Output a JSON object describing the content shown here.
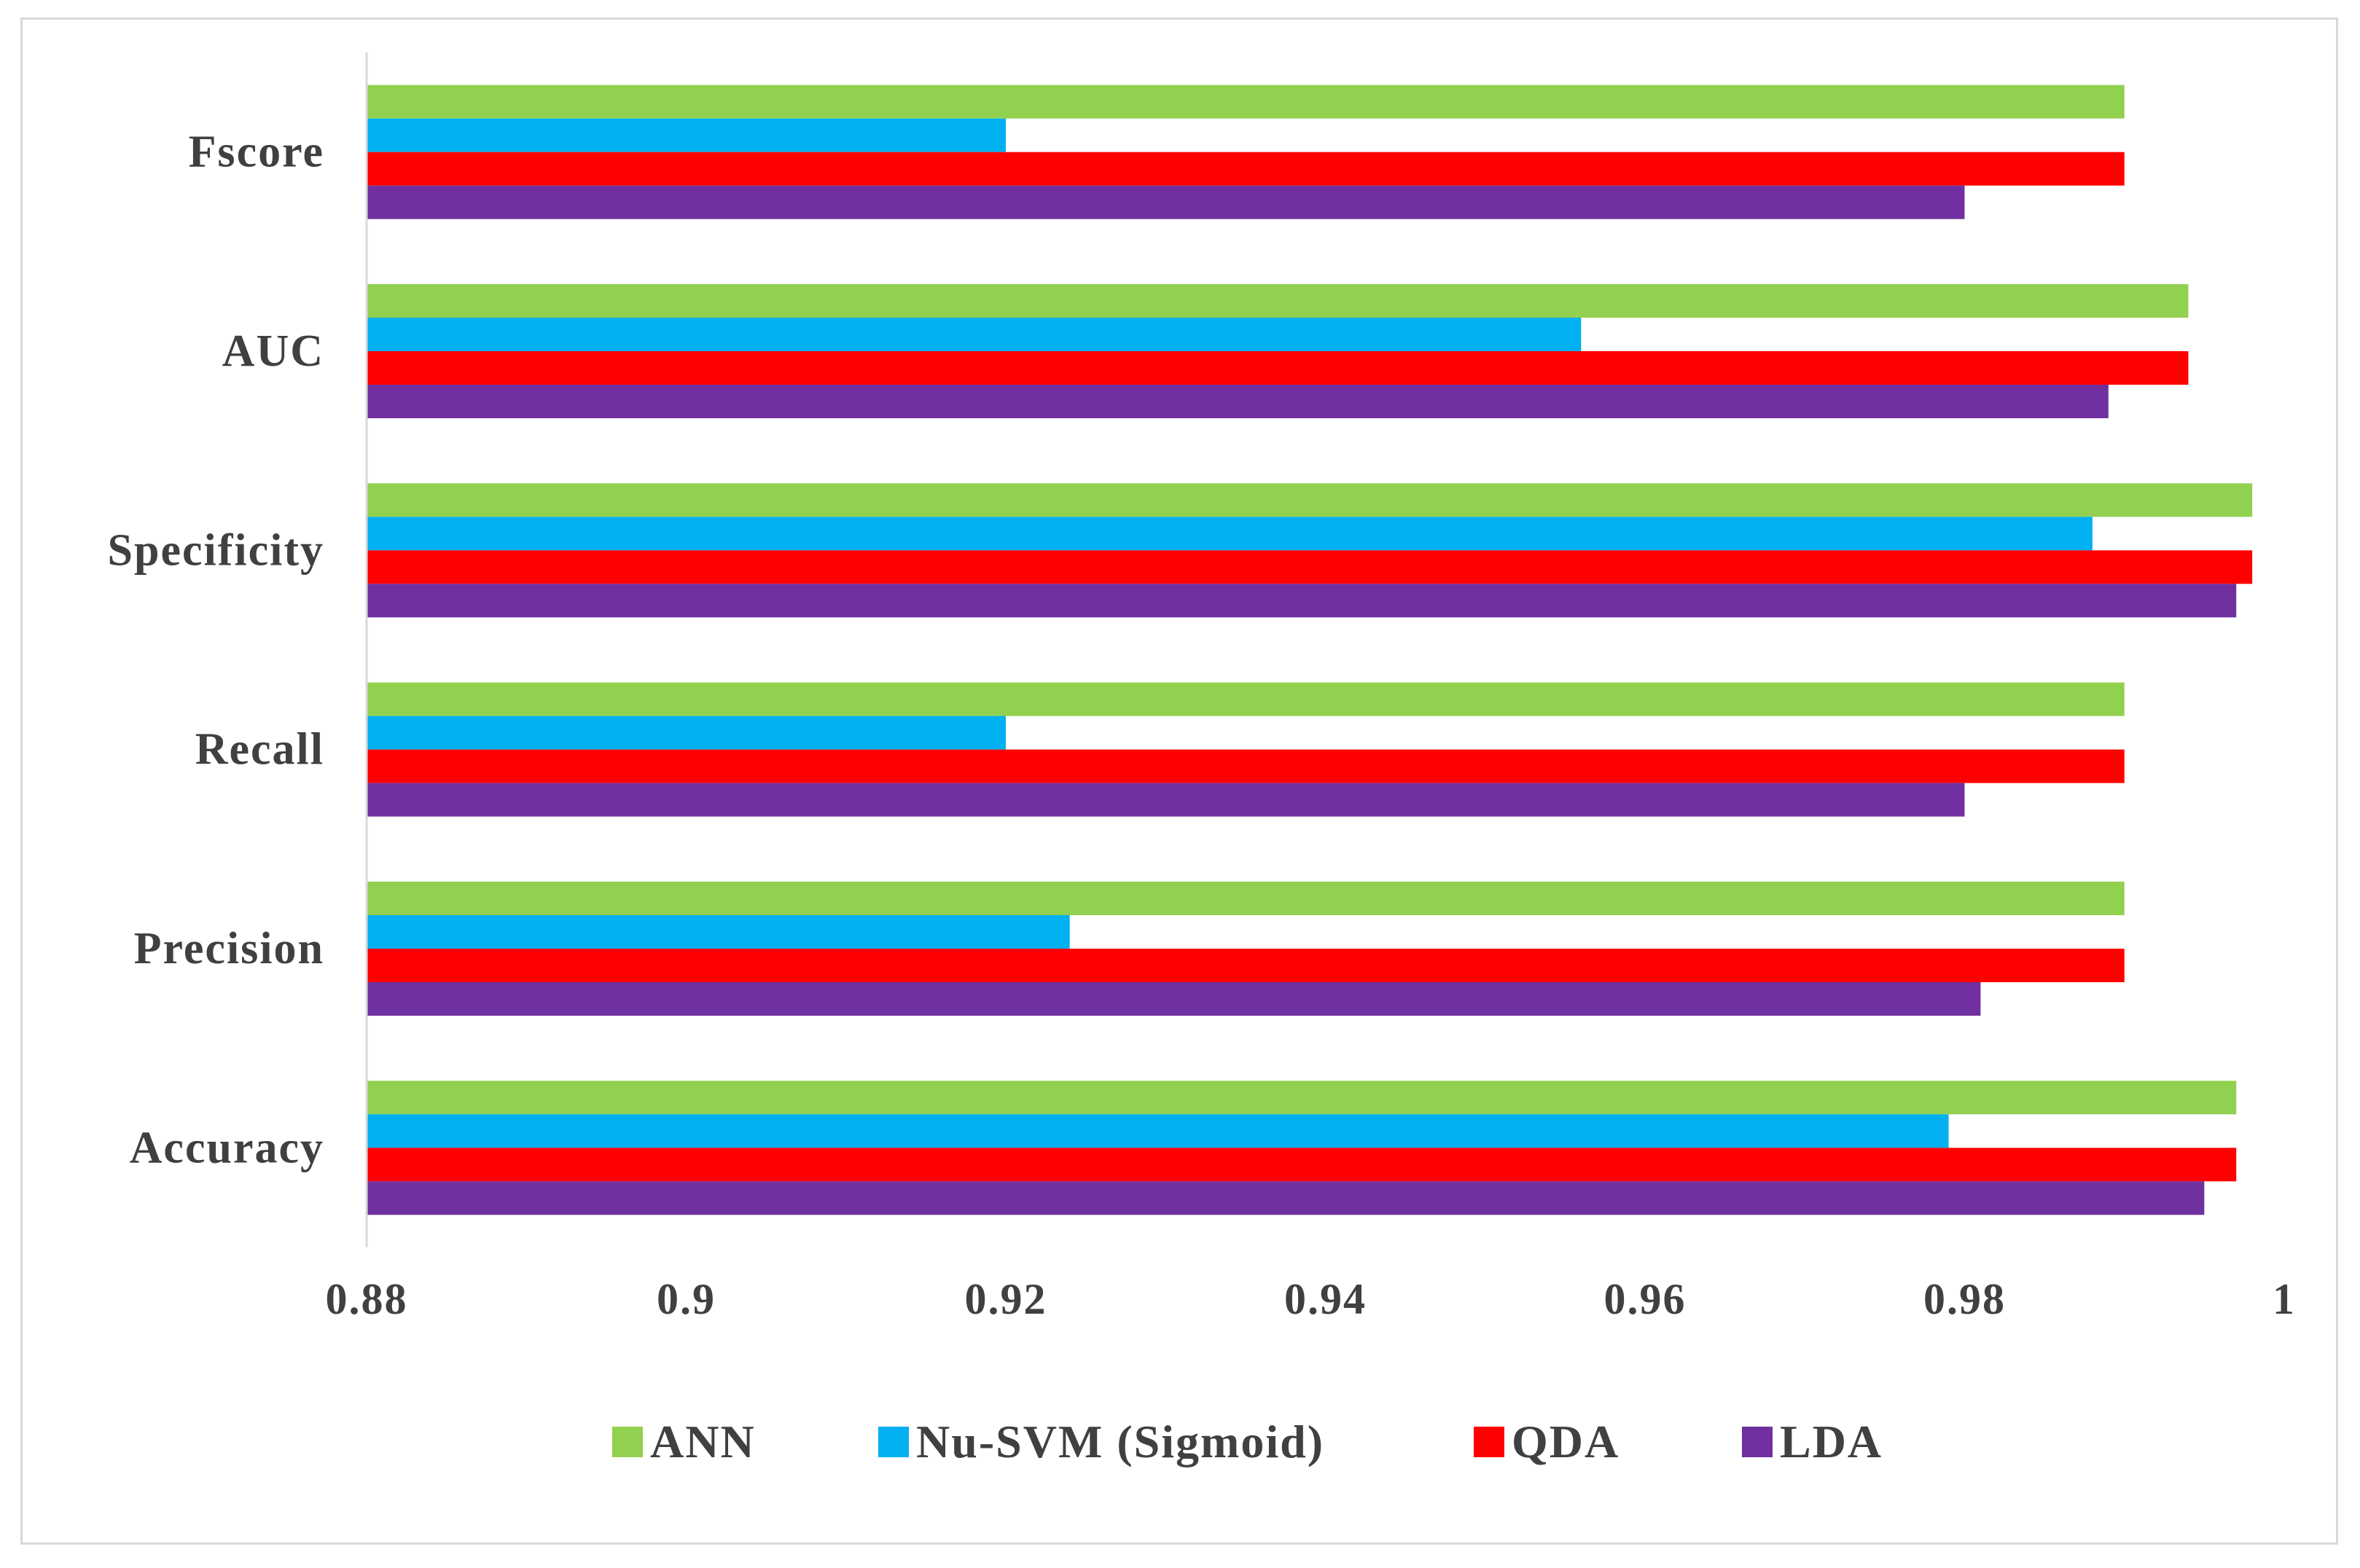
{
  "chart_data": {
    "type": "bar",
    "orientation": "horizontal",
    "categories": [
      "Accuracy",
      "Precision",
      "Recall",
      "Specificity",
      "AUC",
      "Fscore"
    ],
    "series": [
      {
        "name": "ANN",
        "color": "#92d050",
        "values": [
          0.997,
          0.99,
          0.99,
          0.998,
          0.994,
          0.99
        ]
      },
      {
        "name": "Nu-SVM (Sigmoid)",
        "color": "#00b0f0",
        "values": [
          0.979,
          0.924,
          0.92,
          0.988,
          0.956,
          0.92
        ]
      },
      {
        "name": "QDA",
        "color": "#ff0000",
        "values": [
          0.997,
          0.99,
          0.99,
          0.998,
          0.994,
          0.99
        ]
      },
      {
        "name": "LDA",
        "color": "#7030a0",
        "values": [
          0.995,
          0.981,
          0.98,
          0.997,
          0.989,
          0.98
        ]
      }
    ],
    "xlim": [
      0.88,
      1
    ],
    "xticks": [
      "0.88",
      "0.9",
      "0.92",
      "0.94",
      "0.96",
      "0.98",
      "1"
    ],
    "title": "",
    "xlabel": "",
    "ylabel": "",
    "grid": false,
    "legend": "bottom"
  }
}
